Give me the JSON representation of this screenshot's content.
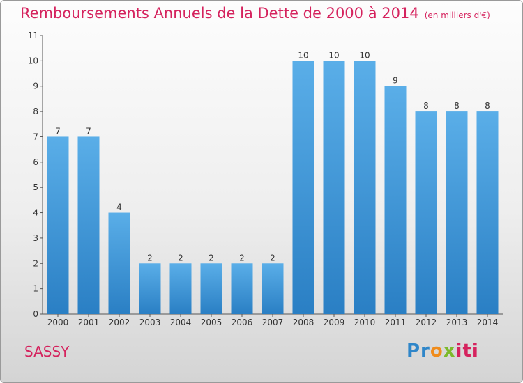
{
  "title": "Remboursements Annuels de la Dette de 2000 à 2014",
  "unit": "(en milliers d'€)",
  "town": "SASSY",
  "logo": {
    "part1": "Pr",
    "part2": "o",
    "part3": "x",
    "part4": "iti"
  },
  "colors": {
    "accent": "#d5235e",
    "bar_light": "#5aaee8",
    "bar_dark": "#2a7fc4"
  },
  "chart_data": {
    "type": "bar",
    "title": "Remboursements Annuels de la Dette de 2000 à 2014",
    "xlabel": "",
    "ylabel": "",
    "ylim": [
      0,
      11
    ],
    "yticks": [
      0,
      1,
      2,
      3,
      4,
      5,
      6,
      7,
      8,
      9,
      10,
      11
    ],
    "grid": false,
    "categories": [
      "2000",
      "2001",
      "2002",
      "2003",
      "2004",
      "2005",
      "2006",
      "2007",
      "2008",
      "2009",
      "2010",
      "2011",
      "2012",
      "2013",
      "2014"
    ],
    "values": [
      7,
      7,
      4,
      2,
      2,
      2,
      2,
      2,
      10,
      10,
      10,
      9,
      8,
      8,
      8
    ]
  }
}
